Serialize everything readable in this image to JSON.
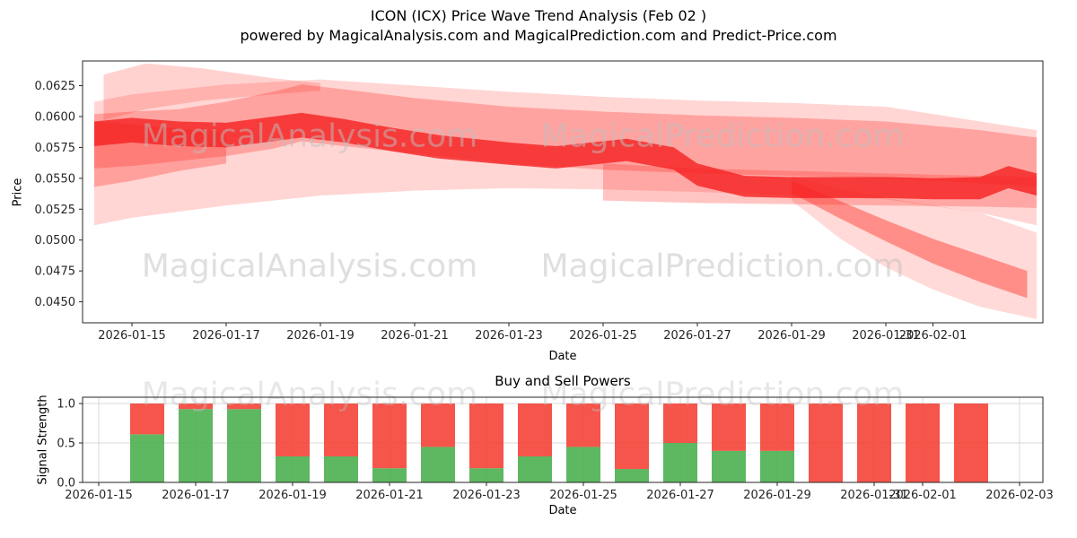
{
  "header": {
    "title": "ICON (ICX) Price Wave Trend Analysis (Feb 02 )",
    "subtitle": "powered by MagicalAnalysis.com and MagicalPrediction.com and Predict-Price.com"
  },
  "watermark": {
    "left": "MagicalAnalysis.com",
    "right": "MagicalPrediction.com"
  },
  "colors": {
    "band_red": "#ff3028",
    "core_red": "#f52020",
    "buy_green": "#4caf50",
    "sell_red": "#f44336",
    "grid": "#d9d9d9",
    "axis": "#262626",
    "watermark_gray": "#bfbfbf"
  },
  "chart_data": [
    {
      "type": "area",
      "name": "price-wave-trend",
      "title": "ICON (ICX) Price Wave Trend Analysis (Feb 02 )",
      "xlabel": "Date",
      "ylabel": "Price",
      "ylim": [
        0.0433,
        0.0645
      ],
      "ytick_labels": [
        "0.0450",
        "0.0475",
        "0.0500",
        "0.0525",
        "0.0550",
        "0.0575",
        "0.0600",
        "0.0625"
      ],
      "xtick_labels": [
        "2026-01-15",
        "2026-01-17",
        "2026-01-19",
        "2026-01-21",
        "2026-01-23",
        "2026-01-25",
        "2026-01-27",
        "2026-01-29",
        "2026-01-31",
        "2026-02-01"
      ],
      "day0": "2026-01-15",
      "grid": false,
      "bands": [
        {
          "name": "outer-envelope",
          "color": "#ff3028",
          "opacity": 0.2,
          "days": [
            -0.8,
            0,
            2,
            4,
            6,
            8,
            10,
            12,
            14,
            16,
            18,
            19.2
          ],
          "upper": [
            0.0612,
            0.0618,
            0.0626,
            0.063,
            0.0625,
            0.062,
            0.0616,
            0.0613,
            0.0611,
            0.0608,
            0.0596,
            0.0589
          ],
          "lower": [
            0.0512,
            0.0518,
            0.0528,
            0.0536,
            0.054,
            0.0542,
            0.0541,
            0.0539,
            0.0536,
            0.0533,
            0.0522,
            0.0512
          ]
        },
        {
          "name": "upper-wedge",
          "color": "#ff3028",
          "opacity": 0.22,
          "days": [
            -0.6,
            0.3,
            1.5,
            3,
            4
          ],
          "upper": [
            0.0634,
            0.0643,
            0.0639,
            0.0631,
            0.0627
          ],
          "lower": [
            0.0597,
            0.0606,
            0.0613,
            0.0618,
            0.0621
          ]
        },
        {
          "name": "mid-band",
          "color": "#ff3028",
          "opacity": 0.3,
          "days": [
            -0.8,
            0,
            1,
            2,
            3,
            3.6,
            4.5,
            6,
            8,
            10,
            12,
            14,
            16,
            18,
            19.2
          ],
          "upper": [
            0.0602,
            0.0604,
            0.0606,
            0.0612,
            0.062,
            0.0626,
            0.0622,
            0.0615,
            0.0608,
            0.0604,
            0.0601,
            0.0599,
            0.0596,
            0.0589,
            0.0583
          ],
          "lower": [
            0.0558,
            0.056,
            0.0564,
            0.0568,
            0.0574,
            0.058,
            0.0576,
            0.057,
            0.0562,
            0.0557,
            0.0554,
            0.0552,
            0.055,
            0.0546,
            0.0543
          ]
        },
        {
          "name": "low-band",
          "color": "#ff3028",
          "opacity": 0.28,
          "days": [
            10,
            12,
            14,
            16,
            18,
            19.2
          ],
          "upper": [
            0.0562,
            0.0558,
            0.0556,
            0.0554,
            0.0552,
            0.0551
          ],
          "lower": [
            0.0532,
            0.053,
            0.0529,
            0.0528,
            0.0527,
            0.0526
          ]
        },
        {
          "name": "left-blob",
          "color": "#ff3028",
          "opacity": 0.32,
          "days": [
            -0.8,
            0,
            1,
            2
          ],
          "upper": [
            0.0596,
            0.0594,
            0.059,
            0.0588
          ],
          "lower": [
            0.0543,
            0.0548,
            0.0556,
            0.0562
          ]
        },
        {
          "name": "descend-envelope",
          "color": "#ff3028",
          "opacity": 0.18,
          "days": [
            14,
            15,
            16,
            17,
            18,
            19.2
          ],
          "upper": [
            0.0552,
            0.0542,
            0.0534,
            0.0528,
            0.0522,
            0.0506
          ],
          "lower": [
            0.0532,
            0.0502,
            0.0478,
            0.046,
            0.0446,
            0.0436
          ]
        },
        {
          "name": "descend-branch",
          "color": "#ff3028",
          "opacity": 0.45,
          "days": [
            14,
            15,
            16,
            17,
            18,
            19
          ],
          "upper": [
            0.0548,
            0.0532,
            0.0516,
            0.0501,
            0.0488,
            0.0475
          ],
          "lower": [
            0.0538,
            0.0518,
            0.0499,
            0.0481,
            0.0466,
            0.0453
          ]
        },
        {
          "name": "core-trend",
          "color": "#f52020",
          "opacity": 0.8,
          "days": [
            -0.8,
            0,
            1,
            2,
            3,
            3.6,
            4.5,
            5.5,
            6.5,
            8,
            9,
            10,
            10.5,
            11.5,
            12,
            13,
            14,
            15,
            16,
            17,
            18,
            18.6,
            19.2
          ],
          "upper": [
            0.0596,
            0.0599,
            0.0596,
            0.0595,
            0.06,
            0.0603,
            0.0598,
            0.0591,
            0.0585,
            0.0579,
            0.0576,
            0.058,
            0.0582,
            0.0575,
            0.0562,
            0.0552,
            0.0551,
            0.0551,
            0.0551,
            0.055,
            0.0551,
            0.056,
            0.0554
          ],
          "lower": [
            0.0576,
            0.0579,
            0.0576,
            0.0575,
            0.058,
            0.0583,
            0.0579,
            0.0572,
            0.0566,
            0.0561,
            0.0558,
            0.0562,
            0.0564,
            0.0557,
            0.0544,
            0.0535,
            0.0534,
            0.0534,
            0.0534,
            0.0533,
            0.0533,
            0.0542,
            0.0536
          ]
        }
      ]
    },
    {
      "type": "bar",
      "name": "buy-sell-powers",
      "title": "Buy and Sell Powers",
      "xlabel": "Date",
      "ylabel": "Signal Strength",
      "ylim": [
        0,
        1.08
      ],
      "ytick_labels": [
        "0.0",
        "0.5",
        "1.0"
      ],
      "xtick_labels": [
        "2026-01-15",
        "2026-01-17",
        "2026-01-19",
        "2026-01-21",
        "2026-01-23",
        "2026-01-25",
        "2026-01-27",
        "2026-01-29",
        "2026-01-31",
        "2026-02-01",
        "2026-02-03"
      ],
      "grid": true,
      "categories": [
        "2026-01-16",
        "2026-01-17",
        "2026-01-18",
        "2026-01-19",
        "2026-01-20",
        "2026-01-21",
        "2026-01-22",
        "2026-01-23",
        "2026-01-24",
        "2026-01-25",
        "2026-01-26",
        "2026-01-27",
        "2026-01-28",
        "2026-01-29",
        "2026-01-30",
        "2026-01-31",
        "2026-02-01",
        "2026-02-02"
      ],
      "series": [
        {
          "name": "buy",
          "color": "#4caf50",
          "values": [
            0.61,
            0.93,
            0.93,
            0.33,
            0.33,
            0.18,
            0.45,
            0.18,
            0.33,
            0.45,
            0.17,
            0.5,
            0.4,
            0.4,
            0,
            0,
            0,
            0
          ]
        },
        {
          "name": "sell",
          "color": "#f44336",
          "values": [
            0.39,
            0.07,
            0.07,
            0.67,
            0.67,
            0.82,
            0.55,
            0.82,
            0.67,
            0.55,
            0.83,
            0.5,
            0.6,
            0.6,
            1.0,
            1.0,
            1.0,
            1.0
          ]
        }
      ]
    }
  ]
}
